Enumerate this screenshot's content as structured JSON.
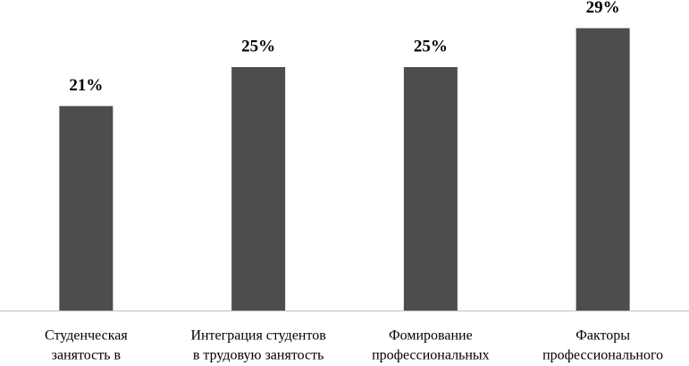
{
  "chart_data": {
    "type": "bar",
    "categories": [
      [
        "Студенческая",
        "занятость в"
      ],
      [
        "Интеграция студентов",
        "в трудовую занятость"
      ],
      [
        "Фомирование",
        "профессиональных"
      ],
      [
        "Факторы",
        "профессионального"
      ]
    ],
    "values": [
      21,
      25,
      25,
      29
    ],
    "value_labels": [
      "21%",
      "25%",
      "25%",
      "29%"
    ],
    "color": "#4d4d4d"
  }
}
